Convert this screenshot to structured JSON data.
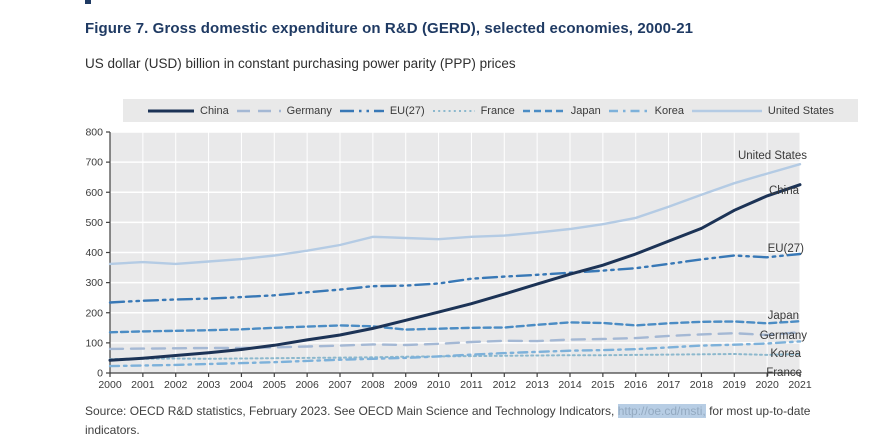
{
  "figure": {
    "title": "Figure 7. Gross domestic expenditure on R&D (GERD), selected economies, 2000-21",
    "subtitle": "US dollar (USD) billion in constant purchasing power parity (PPP) prices",
    "source_prefix": "Source: OECD R&D statistics, February 2023. See OECD Main Science and Technology Indicators, ",
    "source_link": "http://oe.cd/msti,",
    "source_suffix": " for most up-to-date indicators.",
    "title_color": "#1f3a63"
  },
  "chart_data": {
    "type": "line",
    "title": "Gross domestic expenditure on R&D (GERD), selected economies, 2000-21",
    "xlabel": "",
    "ylabel": "USD billion constant PPP",
    "x": [
      2000,
      2001,
      2002,
      2003,
      2004,
      2005,
      2006,
      2007,
      2008,
      2009,
      2010,
      2011,
      2012,
      2013,
      2014,
      2015,
      2016,
      2017,
      2018,
      2019,
      2020,
      2021
    ],
    "ylim": [
      0,
      800
    ],
    "yticks": [
      0,
      100,
      200,
      300,
      400,
      500,
      600,
      700,
      800
    ],
    "grid": true,
    "legend_position": "top",
    "plot_bg": "#e9e9ea",
    "grid_color": "#ffffff",
    "axis_color": "#404040",
    "label_color": "#3a3a3a",
    "series": [
      {
        "name": "China",
        "color": "#1c3356",
        "style": "solid",
        "width": 3,
        "values": [
          42,
          49,
          58,
          67,
          78,
          92,
          110,
          126,
          148,
          175,
          202,
          230,
          262,
          295,
          328,
          358,
          395,
          438,
          480,
          540,
          588,
          625
        ]
      },
      {
        "name": "Germany",
        "color": "#a4b8d4",
        "style": "long-dash",
        "width": 2.4,
        "values": [
          80,
          81,
          82,
          83,
          83,
          85,
          88,
          91,
          95,
          93,
          97,
          103,
          107,
          106,
          111,
          113,
          116,
          123,
          128,
          132,
          126,
          135
        ]
      },
      {
        "name": "EU(27)",
        "color": "#3878b6",
        "style": "dash-dot-dot",
        "width": 2.4,
        "values": [
          234,
          240,
          244,
          247,
          252,
          258,
          268,
          277,
          288,
          290,
          297,
          313,
          320,
          326,
          333,
          340,
          348,
          362,
          377,
          390,
          384,
          395
        ]
      },
      {
        "name": "France",
        "color": "#8cb8cd",
        "style": "dotted",
        "width": 2,
        "values": [
          46,
          47,
          48,
          47,
          48,
          49,
          50,
          51,
          52,
          54,
          55,
          56,
          57,
          58,
          59,
          59,
          60,
          61,
          62,
          63,
          60,
          63
        ]
      },
      {
        "name": "Japan",
        "color": "#4b8cc4",
        "style": "dashed",
        "width": 2.4,
        "values": [
          135,
          138,
          140,
          142,
          145,
          150,
          154,
          158,
          155,
          144,
          147,
          150,
          151,
          160,
          168,
          166,
          158,
          165,
          170,
          171,
          165,
          172
        ]
      },
      {
        "name": "Korea",
        "color": "#7db1da",
        "style": "dash-dot",
        "width": 2.4,
        "values": [
          23,
          25,
          27,
          30,
          33,
          36,
          40,
          44,
          47,
          50,
          55,
          61,
          66,
          70,
          74,
          76,
          79,
          85,
          91,
          94,
          98,
          105
        ]
      },
      {
        "name": "United States",
        "color": "#b4cbe4",
        "style": "solid",
        "width": 2.4,
        "values": [
          362,
          368,
          362,
          370,
          378,
          390,
          406,
          425,
          452,
          448,
          444,
          452,
          456,
          466,
          478,
          494,
          515,
          552,
          592,
          630,
          662,
          693
        ]
      }
    ]
  }
}
